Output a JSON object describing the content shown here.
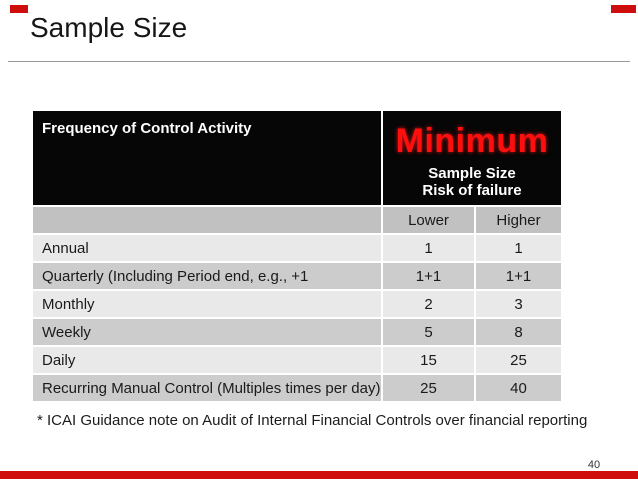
{
  "slide": {
    "title": "Sample Size",
    "footnote": "* ICAI Guidance note on Audit of Internal Financial Controls over financial reporting",
    "page_number": "40"
  },
  "table": {
    "header": {
      "frequency_label": "Frequency of Control Activity",
      "minimum_title": "Minimum",
      "minimum_sub1": "Sample Size",
      "minimum_sub2": "Risk of failure"
    },
    "subheader": {
      "lower": "Lower",
      "higher": "Higher"
    },
    "rows": [
      {
        "label": "Annual",
        "lower": "1",
        "higher": "1"
      },
      {
        "label": "Quarterly (Including Period end, e.g., +1",
        "lower": "1+1",
        "higher": "1+1"
      },
      {
        "label": "Monthly",
        "lower": "2",
        "higher": "3"
      },
      {
        "label": "Weekly",
        "lower": "5",
        "higher": "8"
      },
      {
        "label": "Daily",
        "lower": "15",
        "higher": "25"
      },
      {
        "label": "Recurring Manual Control (Multiples times per day)",
        "lower": "25",
        "higher": "40"
      }
    ]
  },
  "colors": {
    "accent_red": "#ff0e0e",
    "edge_bar_red": "#cf0d0d",
    "header_bg": "#060606",
    "header_text": "#ffffff",
    "subheader_bg": "#c2c1c1",
    "row_light": "#eae9e9",
    "row_dark": "#cdcccc"
  }
}
